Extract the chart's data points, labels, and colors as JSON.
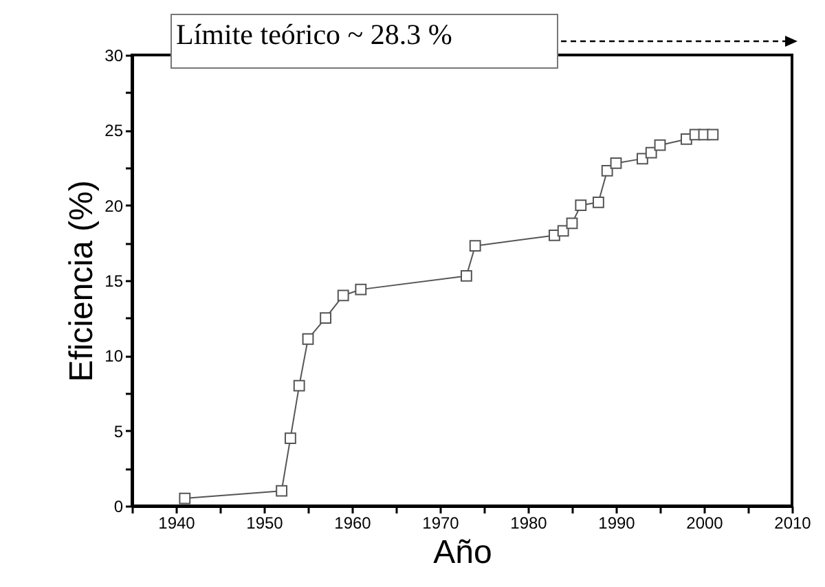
{
  "chart_data": {
    "type": "line",
    "xlabel": "Año",
    "ylabel": "Eficiencia (%)",
    "annotations": [
      "Límite teórico ~ 28.3 %"
    ],
    "x": [
      1941,
      1952,
      1953,
      1954,
      1955,
      1957,
      1959,
      1961,
      1973,
      1974,
      1983,
      1984,
      1985,
      1986,
      1988,
      1989,
      1990,
      1993,
      1994,
      1995,
      1998,
      1999,
      2000,
      2001
    ],
    "series": [
      {
        "color": "#555555",
        "values": [
          0.5,
          1,
          4.5,
          8,
          11.1,
          12.5,
          14,
          14.4,
          15.3,
          17.3,
          18,
          18.3,
          18.8,
          20,
          20.2,
          22.3,
          22.8,
          23.1,
          23.5,
          24,
          24.4,
          24.7,
          24.7,
          24.7
        ]
      }
    ],
    "xlim": [
      1935,
      2010
    ],
    "xticks": [
      {
        "value": 1935,
        "label": null
      },
      1940,
      {
        "value": 1945,
        "label": null
      },
      1950,
      {
        "value": 1955,
        "label": null
      },
      1960,
      {
        "value": 1965,
        "label": null
      },
      1970,
      {
        "value": 1975,
        "label": null
      },
      1980,
      {
        "value": 1985,
        "label": null
      },
      1990,
      {
        "value": 1995,
        "label": null
      },
      2000,
      {
        "value": 2005,
        "label": null
      },
      2010
    ],
    "ylim": [
      0,
      30
    ],
    "yticks": [
      0,
      {
        "value": 2.5,
        "label": null
      },
      5,
      {
        "value": 7.5,
        "label": null
      },
      10,
      {
        "value": 12.5,
        "label": null
      },
      15,
      {
        "value": 17.5,
        "label": null
      },
      20,
      {
        "value": 22.5,
        "label": null
      },
      25,
      {
        "value": 27.5,
        "label": null
      },
      30
    ],
    "marker": "square",
    "line_style": "solid"
  }
}
